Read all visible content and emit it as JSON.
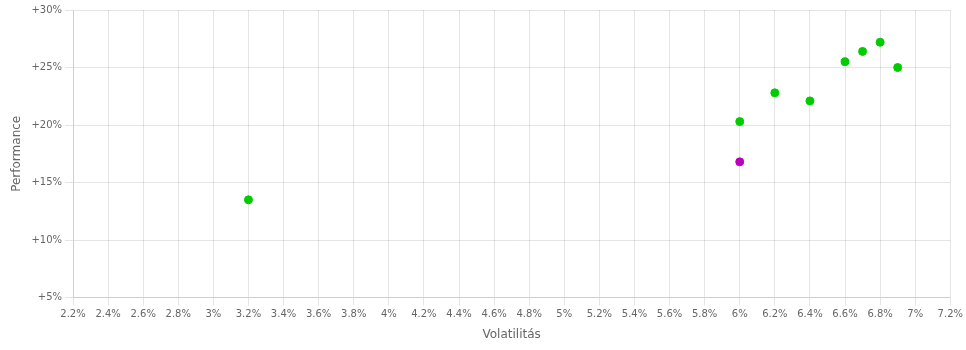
{
  "chart_data": {
    "type": "scatter",
    "xlabel": "Volatilitás",
    "ylabel": "Performance",
    "xlim": [
      0.022,
      0.072
    ],
    "ylim": [
      0.05,
      0.3
    ],
    "xticks": [
      {
        "value": 0.022,
        "label": "2.2%"
      },
      {
        "value": 0.024,
        "label": "2.4%"
      },
      {
        "value": 0.026,
        "label": "2.6%"
      },
      {
        "value": 0.028,
        "label": "2.8%"
      },
      {
        "value": 0.03,
        "label": "3%"
      },
      {
        "value": 0.032,
        "label": "3.2%"
      },
      {
        "value": 0.034,
        "label": "3.4%"
      },
      {
        "value": 0.036,
        "label": "3.6%"
      },
      {
        "value": 0.038,
        "label": "3.8%"
      },
      {
        "value": 0.04,
        "label": "4%"
      },
      {
        "value": 0.042,
        "label": "4.2%"
      },
      {
        "value": 0.044,
        "label": "4.4%"
      },
      {
        "value": 0.046,
        "label": "4.6%"
      },
      {
        "value": 0.048,
        "label": "4.8%"
      },
      {
        "value": 0.05,
        "label": "5%"
      },
      {
        "value": 0.052,
        "label": "5.2%"
      },
      {
        "value": 0.054,
        "label": "5.4%"
      },
      {
        "value": 0.056,
        "label": "5.6%"
      },
      {
        "value": 0.058,
        "label": "5.8%"
      },
      {
        "value": 0.06,
        "label": "6%"
      },
      {
        "value": 0.062,
        "label": "6.2%"
      },
      {
        "value": 0.064,
        "label": "6.4%"
      },
      {
        "value": 0.066,
        "label": "6.6%"
      },
      {
        "value": 0.068,
        "label": "6.8%"
      },
      {
        "value": 0.07,
        "label": "7%"
      },
      {
        "value": 0.072,
        "label": "7.2%"
      }
    ],
    "yticks": [
      {
        "value": 0.05,
        "label": "+5%"
      },
      {
        "value": 0.1,
        "label": "+10%"
      },
      {
        "value": 0.15,
        "label": "+15%"
      },
      {
        "value": 0.2,
        "label": "+20%"
      },
      {
        "value": 0.25,
        "label": "+25%"
      },
      {
        "value": 0.3,
        "label": "+30%"
      }
    ],
    "grid": true,
    "series": [
      {
        "color": "#00cc00",
        "x": [
          0.032,
          0.06,
          0.062,
          0.064,
          0.066,
          0.067,
          0.068,
          0.069
        ],
        "values": [
          0.135,
          0.203,
          0.228,
          0.221,
          0.255,
          0.264,
          0.272,
          0.25
        ]
      },
      {
        "color": "#bb00bb",
        "x": [
          0.06
        ],
        "values": [
          0.168
        ]
      }
    ]
  }
}
